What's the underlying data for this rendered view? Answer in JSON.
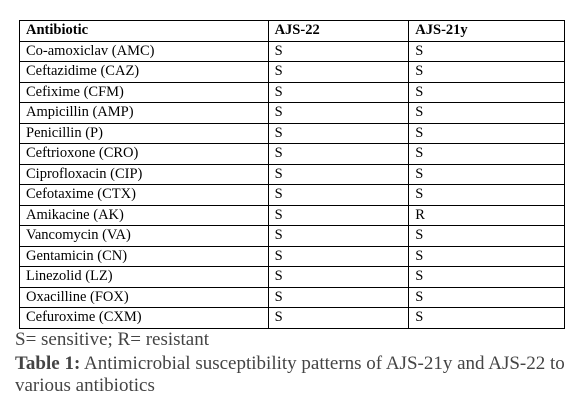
{
  "table": {
    "header": [
      "Antibiotic",
      "AJS-22",
      "AJS-21y"
    ],
    "rows": [
      [
        "Co-amoxiclav (AMC)",
        "S",
        "S"
      ],
      [
        "Ceftazidime (CAZ)",
        "S",
        "S"
      ],
      [
        "Cefixime (CFM)",
        "S",
        "S"
      ],
      [
        "Ampicillin (AMP)",
        "S",
        "S"
      ],
      [
        "Penicillin (P)",
        "S",
        "S"
      ],
      [
        "Ceftrioxone (CRO)",
        "S",
        "S"
      ],
      [
        "Ciprofloxacin (CIP)",
        "S",
        "S"
      ],
      [
        "Cefotaxime (CTX)",
        "S",
        "S"
      ],
      [
        "Amikacine (AK)",
        "S",
        "R"
      ],
      [
        "Vancomycin (VA)",
        "S",
        "S"
      ],
      [
        "Gentamicin (CN)",
        "S",
        "S"
      ],
      [
        "Linezolid (LZ)",
        "S",
        "S"
      ],
      [
        "Oxacilline (FOX)",
        "S",
        "S"
      ],
      [
        "Cefuroxime (CXM)",
        "S",
        "S"
      ]
    ]
  },
  "legend": "S= sensitive; R= resistant",
  "caption": {
    "label": "Table 1:",
    "text": "Antimicrobial susceptibility patterns of AJS-21y and AJS-22 to various antibiotics"
  }
}
